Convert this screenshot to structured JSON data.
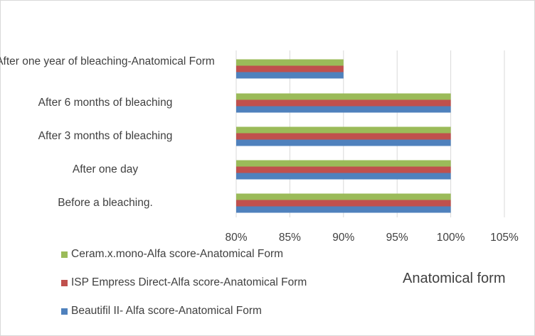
{
  "chart_data": {
    "type": "bar",
    "orientation": "horizontal",
    "title": "Anatomical form",
    "categories": [
      "Before a bleaching.",
      "After one day",
      "After 3 months of bleaching",
      "After 6 months of bleaching",
      "After one year of bleaching-Anatomical Form"
    ],
    "series": [
      {
        "name": "Beautifil II- Alfa score-Anatomical Form",
        "color": "#4f81bd",
        "values": [
          1.0,
          1.0,
          1.0,
          1.0,
          0.9
        ]
      },
      {
        "name": "ISP Empress Direct-Alfa score-Anatomical Form",
        "color": "#c0504d",
        "values": [
          1.0,
          1.0,
          1.0,
          1.0,
          0.9
        ]
      },
      {
        "name": "Ceram.x.mono-Alfa score-Anatomical Form",
        "color": "#9bbb59",
        "values": [
          1.0,
          1.0,
          1.0,
          1.0,
          0.9
        ]
      }
    ],
    "xlim": [
      0.8,
      1.05
    ],
    "xticks": [
      "80%",
      "85%",
      "90%",
      "95%",
      "100%",
      "105%"
    ],
    "xticks_values": [
      0.8,
      0.85,
      0.9,
      0.95,
      1.0,
      1.05
    ],
    "grid": true,
    "legend_position": "bottom-left"
  }
}
